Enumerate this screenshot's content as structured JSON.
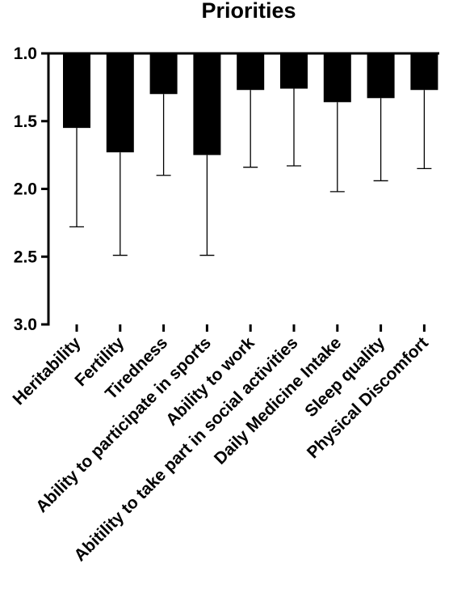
{
  "chart_data": {
    "type": "bar",
    "title": "Priorities",
    "xlabel": "",
    "ylabel": "",
    "y_inverted": true,
    "ylim": [
      1.0,
      3.0
    ],
    "yticks": [
      1.0,
      1.5,
      2.0,
      2.5,
      3.0
    ],
    "ytick_labels": [
      "1.0",
      "1.5",
      "2.0",
      "2.5",
      "3.0"
    ],
    "grid": false,
    "bar_color": "#000000",
    "categories": [
      "Heritability",
      "Fertility",
      "Tiredness",
      "Ability to participate in sports",
      "Ability to work",
      "Abitility to take part in social activities",
      "Daily Medicine Intake",
      "Sleep quality",
      "Physical Discomfort"
    ],
    "values": [
      1.55,
      1.73,
      1.3,
      1.75,
      1.27,
      1.26,
      1.36,
      1.33,
      1.27
    ],
    "error_upper": [
      2.28,
      2.49,
      1.9,
      2.49,
      1.84,
      1.83,
      2.02,
      1.94,
      1.85
    ]
  }
}
